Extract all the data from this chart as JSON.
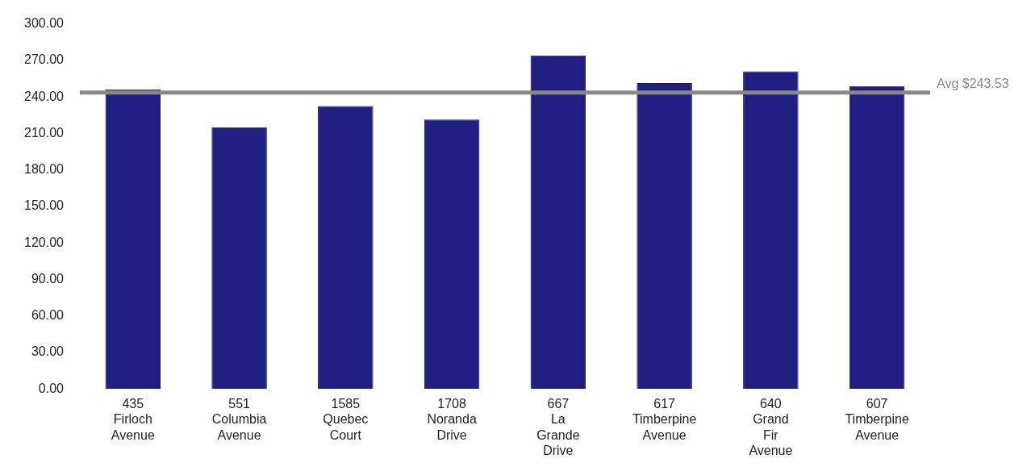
{
  "chart_data": {
    "type": "bar",
    "categories": [
      "435\nFirloch\nAvenue",
      "551\nColumbia\nAvenue",
      "1585\nQuebec\nCourt",
      "1708\nNoranda\nDrive",
      "667\nLa\nGrande\nDrive",
      "617\nTimberpine\nAvenue",
      "640\nGrand\nFir\nAvenue",
      "607\nTimberpine\nAvenue"
    ],
    "values": [
      246.2,
      215.1,
      232.5,
      221.3,
      274.1,
      251.3,
      260.9,
      248.9
    ],
    "color": "#1f1f82",
    "ylim": [
      0,
      300
    ],
    "yticks": [
      {
        "value": 0,
        "label": "0.00"
      },
      {
        "value": 30,
        "label": "30.00"
      },
      {
        "value": 60,
        "label": "60.00"
      },
      {
        "value": 90,
        "label": "90.00"
      },
      {
        "value": 120,
        "label": "120.00"
      },
      {
        "value": 150,
        "label": "150.00"
      },
      {
        "value": 180,
        "label": "180.00"
      },
      {
        "value": 210,
        "label": "210.00"
      },
      {
        "value": 240,
        "label": "240.00"
      },
      {
        "value": 270,
        "label": "270.00"
      },
      {
        "value": 300,
        "label": "300.00"
      }
    ],
    "grid": false,
    "legend": false,
    "ref_lines": [
      {
        "axis": "y",
        "value": 243.53,
        "label": "Avg $243.53",
        "color": "#888888"
      }
    ]
  }
}
